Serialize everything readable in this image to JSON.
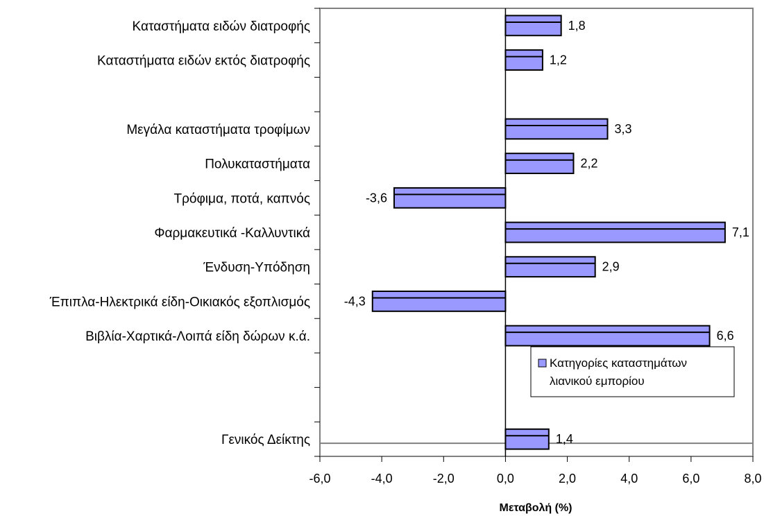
{
  "chart_data": {
    "type": "bar",
    "orientation": "horizontal",
    "xlabel": "Μεταβολή (%)",
    "xlim": [
      -6,
      8
    ],
    "xticks": [
      -6,
      -4,
      -2,
      0,
      2,
      4,
      6,
      8
    ],
    "xtick_labels": [
      "-6,0",
      "-4,0",
      "-2,0",
      "0,0",
      "2,0",
      "4,0",
      "6,0",
      "8,0"
    ],
    "legend": {
      "label_lines": [
        "Κατηγορίες καταστημάτων",
        "λιανικού εμπορίου"
      ],
      "position": "lower-right"
    },
    "series_color": "#9999ff",
    "rows": [
      {
        "category": "Καταστήματα ειδών διατροφής",
        "value": 1.8,
        "value_label": "1,8"
      },
      {
        "category": "Καταστήματα ειδών  εκτός διατροφής",
        "value": 1.2,
        "value_label": "1,2"
      },
      {
        "category": "",
        "value": null,
        "value_label": ""
      },
      {
        "category": "Μεγάλα καταστήματα τροφίμων",
        "value": 3.3,
        "value_label": "3,3"
      },
      {
        "category": "Πολυκαταστήματα",
        "value": 2.2,
        "value_label": "2,2"
      },
      {
        "category": "Τρόφιμα, ποτά, καπνός",
        "value": -3.6,
        "value_label": "-3,6"
      },
      {
        "category": "Φαρμακευτικά -Καλλυντικά",
        "value": 7.1,
        "value_label": "7,1"
      },
      {
        "category": "Ένδυση-Υπόδηση",
        "value": 2.9,
        "value_label": "2,9"
      },
      {
        "category": "Έπιπλα-Ηλεκτρικά είδη-Οικιακός εξοπλισμός",
        "value": -4.3,
        "value_label": "-4,3"
      },
      {
        "category": "Βιβλία-Χαρτικά-Λοιπά είδη δώρων κ.ά.",
        "value": 6.6,
        "value_label": "6,6"
      },
      {
        "category": "",
        "value": null,
        "value_label": ""
      },
      {
        "category": "",
        "value": null,
        "value_label": ""
      },
      {
        "category": "Γενικός Δείκτης",
        "value": 1.4,
        "value_label": "1,4"
      }
    ]
  }
}
